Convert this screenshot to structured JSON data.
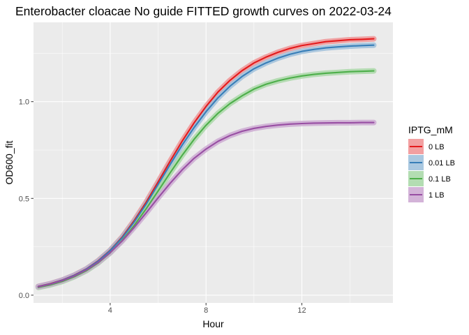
{
  "chart_data": {
    "type": "line",
    "title": "Enterobacter cloacae No guide FITTED growth curves on 2022-03-24",
    "xlabel": "Hour",
    "ylabel": "OD600_fit",
    "xlim": [
      0.8,
      15.8
    ],
    "ylim": [
      -0.04,
      1.41
    ],
    "x_ticks": [
      4,
      8,
      12
    ],
    "x_tick_labels": [
      "4",
      "8",
      "12"
    ],
    "y_ticks": [
      0,
      0.5,
      1
    ],
    "y_tick_labels": [
      "0.0",
      "0.5",
      "1.0"
    ],
    "grid": true,
    "legend_title": "IPTG_mM",
    "legend_position": "right",
    "x": [
      1,
      1.5,
      2,
      2.5,
      3,
      3.5,
      4,
      4.5,
      5,
      5.5,
      6,
      6.5,
      7,
      7.5,
      8,
      8.5,
      9,
      9.5,
      10,
      10.5,
      11,
      11.5,
      12,
      12.5,
      13,
      13.5,
      14,
      14.5,
      15
    ],
    "series": [
      {
        "name": "0 LB",
        "color": "#e41a1c",
        "band": "#f08f90",
        "values": [
          0.045,
          0.059,
          0.078,
          0.103,
          0.135,
          0.178,
          0.232,
          0.3,
          0.385,
          0.48,
          0.585,
          0.692,
          0.795,
          0.89,
          0.975,
          1.05,
          1.11,
          1.16,
          1.2,
          1.23,
          1.255,
          1.275,
          1.29,
          1.3,
          1.31,
          1.315,
          1.32,
          1.322,
          1.325
        ]
      },
      {
        "name": "0.01 LB",
        "color": "#377eb8",
        "band": "#9bbedb",
        "values": [
          0.044,
          0.058,
          0.077,
          0.102,
          0.134,
          0.176,
          0.23,
          0.296,
          0.378,
          0.47,
          0.572,
          0.675,
          0.775,
          0.866,
          0.948,
          1.02,
          1.08,
          1.13,
          1.17,
          1.2,
          1.225,
          1.245,
          1.26,
          1.27,
          1.278,
          1.283,
          1.287,
          1.29,
          1.292
        ]
      },
      {
        "name": "0.1 LB",
        "color": "#4daf4a",
        "band": "#a6d7a4",
        "values": [
          0.04,
          0.053,
          0.071,
          0.095,
          0.126,
          0.167,
          0.219,
          0.283,
          0.36,
          0.446,
          0.538,
          0.632,
          0.722,
          0.805,
          0.878,
          0.94,
          0.99,
          1.03,
          1.065,
          1.09,
          1.108,
          1.122,
          1.133,
          1.141,
          1.147,
          1.151,
          1.155,
          1.157,
          1.159
        ]
      },
      {
        "name": "1 LB",
        "color": "#984ea3",
        "band": "#cba6d1",
        "values": [
          0.043,
          0.057,
          0.075,
          0.099,
          0.13,
          0.17,
          0.22,
          0.28,
          0.35,
          0.425,
          0.503,
          0.578,
          0.647,
          0.707,
          0.755,
          0.795,
          0.825,
          0.847,
          0.862,
          0.872,
          0.879,
          0.884,
          0.887,
          0.889,
          0.89,
          0.891,
          0.891,
          0.892,
          0.892
        ]
      }
    ]
  }
}
